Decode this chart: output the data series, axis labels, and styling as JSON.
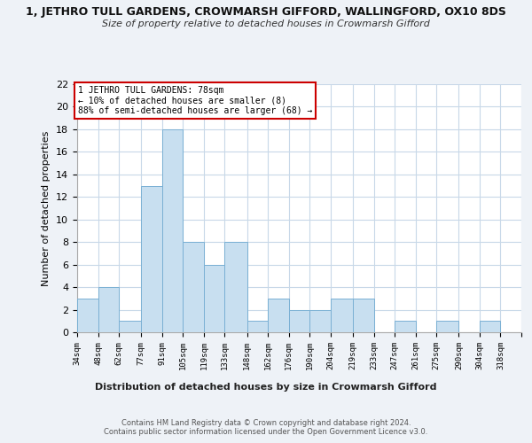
{
  "title_top": "1, JETHRO TULL GARDENS, CROWMARSH GIFFORD, WALLINGFORD, OX10 8DS",
  "title_sub": "Size of property relative to detached houses in Crowmarsh Gifford",
  "xlabel": "Distribution of detached houses by size in Crowmarsh Gifford",
  "ylabel": "Number of detached properties",
  "bar_color": "#c8dff0",
  "bar_edge_color": "#7ab0d4",
  "bins": [
    34,
    48,
    62,
    77,
    91,
    105,
    119,
    133,
    148,
    162,
    176,
    190,
    204,
    219,
    233,
    247,
    261,
    275,
    290,
    304,
    318
  ],
  "counts": [
    3,
    4,
    1,
    13,
    18,
    8,
    6,
    8,
    1,
    3,
    2,
    2,
    3,
    3,
    0,
    1,
    0,
    1,
    0,
    1
  ],
  "tick_labels": [
    "34sqm",
    "48sqm",
    "62sqm",
    "77sqm",
    "91sqm",
    "105sqm",
    "119sqm",
    "133sqm",
    "148sqm",
    "162sqm",
    "176sqm",
    "190sqm",
    "204sqm",
    "219sqm",
    "233sqm",
    "247sqm",
    "261sqm",
    "275sqm",
    "290sqm",
    "304sqm",
    "318sqm"
  ],
  "ylim": [
    0,
    22
  ],
  "yticks": [
    0,
    2,
    4,
    6,
    8,
    10,
    12,
    14,
    16,
    18,
    20,
    22
  ],
  "annotation_box_text": "1 JETHRO TULL GARDENS: 78sqm\n← 10% of detached houses are smaller (8)\n88% of semi-detached houses are larger (68) →",
  "footer_line1": "Contains HM Land Registry data © Crown copyright and database right 2024.",
  "footer_line2": "Contains public sector information licensed under the Open Government Licence v3.0.",
  "background_color": "#eef2f7",
  "plot_background": "#ffffff",
  "grid_color": "#c8d8e8"
}
